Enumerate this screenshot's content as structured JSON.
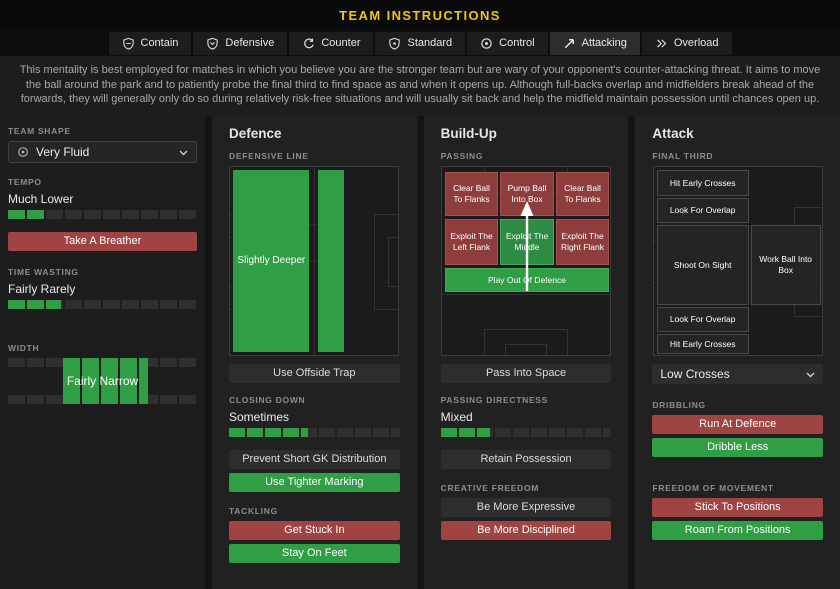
{
  "colors": {
    "accent": "#f2c50f",
    "green": "#2f9e44",
    "red": "#a04343"
  },
  "header": {
    "title": "TEAM INSTRUCTIONS"
  },
  "tabs": [
    {
      "label": "Contain"
    },
    {
      "label": "Defensive"
    },
    {
      "label": "Counter"
    },
    {
      "label": "Standard"
    },
    {
      "label": "Control"
    },
    {
      "label": "Attacking",
      "selected": true
    },
    {
      "label": "Overload"
    }
  ],
  "description": "This mentality is best employed for matches in which you believe you are the stronger team but are wary of your opponent's counter-attacking threat. It aims to move the ball around the park and to patiently probe the final third to find space as and when it opens up. Although full-backs overlap and midfielders break ahead of the forwards, they will generally only do so during relatively risk-free situations and will usually sit back and help the midfield maintain possession until chances open up.",
  "sidebar": {
    "team_shape": {
      "label": "TEAM SHAPE",
      "value": "Very Fluid"
    },
    "tempo": {
      "label": "TEMPO",
      "value": "Much Lower",
      "percent": 19,
      "button": "Take A Breather"
    },
    "time_wasting": {
      "label": "TIME WASTING",
      "value": "Fairly Rarely",
      "percent": 28
    },
    "width": {
      "label": "WIDTH",
      "value": "Fairly Narrow"
    }
  },
  "defence": {
    "title": "Defence",
    "defensive_line": {
      "label": "DEFENSIVE LINE",
      "value": "Slightly Deeper",
      "button": "Use Offside Trap"
    },
    "closing_down": {
      "label": "CLOSING DOWN",
      "value": "Sometimes",
      "percent": 46,
      "button_1": "Prevent Short GK Distribution",
      "button_2": "Use Tighter Marking"
    },
    "tackling": {
      "label": "TACKLING",
      "button_1": "Get Stuck In",
      "button_2": "Stay On Feet"
    }
  },
  "build_up": {
    "title": "Build-Up",
    "passing": {
      "label": "PASSING",
      "zone_top_left": "Clear Ball To Flanks",
      "zone_top_center": "Pump Ball Into Box",
      "zone_top_right": "Clear Ball To Flanks",
      "zone_mid_left": "Exploit The Left Flank",
      "zone_mid_center": "Exploit The Middle",
      "zone_mid_right": "Exploit The Right Flank",
      "zone_bottom": "Play Out Of Defence",
      "button": "Pass Into Space"
    },
    "passing_directness": {
      "label": "PASSING DIRECTNESS",
      "value": "Mixed",
      "percent": 29,
      "button": "Retain Possession"
    },
    "creative_freedom": {
      "label": "CREATIVE FREEDOM",
      "button_1": "Be More Expressive",
      "button_2": "Be More Disciplined"
    }
  },
  "attack": {
    "title": "Attack",
    "final_third": {
      "label": "FINAL THIRD",
      "zone_1": "Hit Early Crosses",
      "zone_2": "Look For Overlap",
      "zone_3": "Shoot On Sight",
      "zone_4": "Look For Overlap",
      "zone_5": "Hit Early Crosses",
      "zone_right": "Work Ball Into Box",
      "dropdown": "Low Crosses"
    },
    "dribbling": {
      "label": "DRIBBLING",
      "button_1": "Run At Defence",
      "button_2": "Dribble Less"
    },
    "freedom_of_movement": {
      "label": "FREEDOM OF MOVEMENT",
      "button_1": "Stick To Positions",
      "button_2": "Roam From Positions"
    }
  }
}
